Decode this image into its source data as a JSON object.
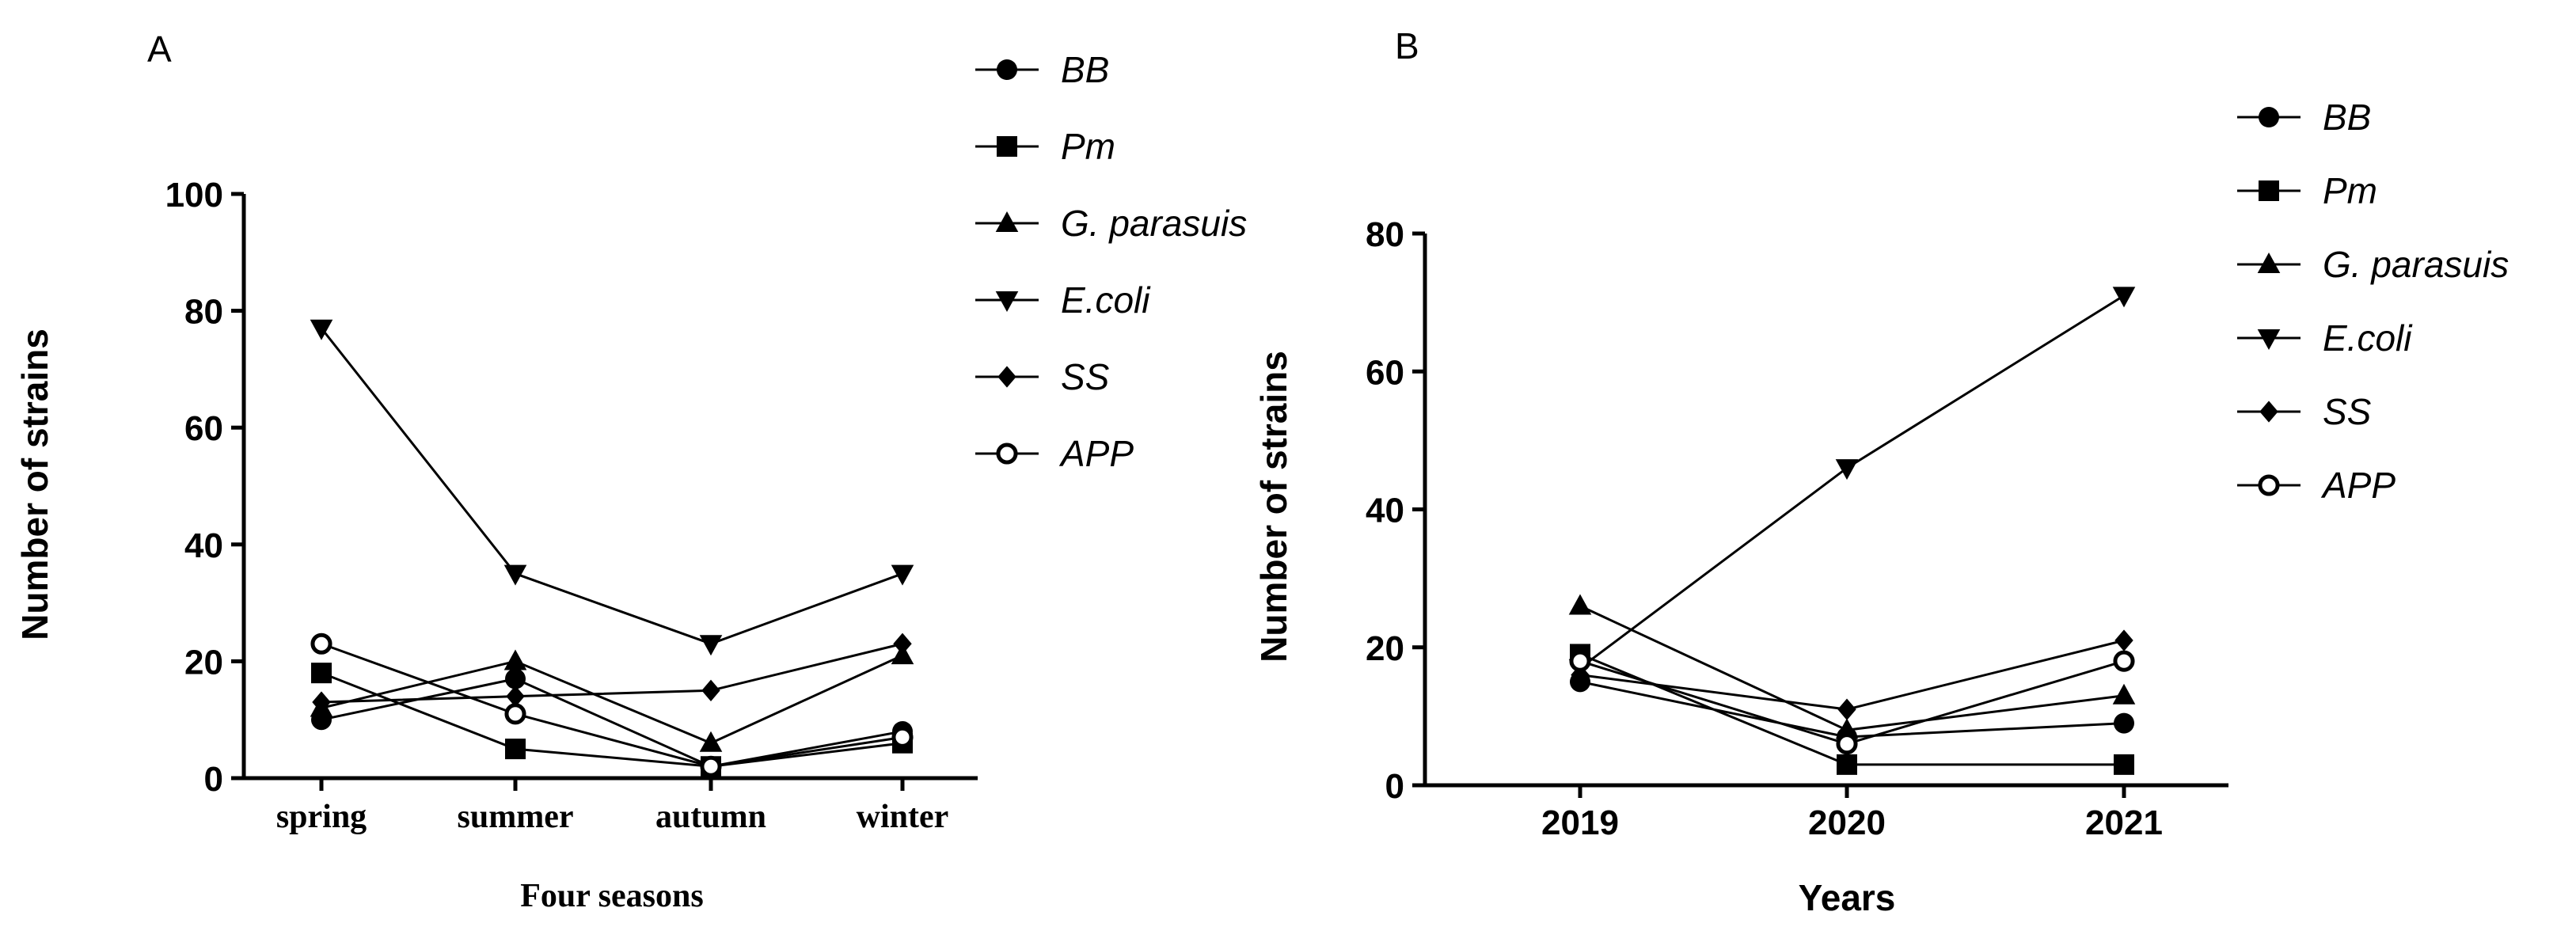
{
  "chart_data": [
    {
      "panel_label": "A",
      "type": "line",
      "xlabel": "Four seasons",
      "ylabel": "Number of strains",
      "categories": [
        "spring",
        "summer",
        "autumn",
        "winter"
      ],
      "yticks": [
        "0",
        "20",
        "40",
        "60",
        "80",
        "100"
      ],
      "ylim": [
        0,
        100
      ],
      "legend": "top-right",
      "grid": false,
      "series": [
        {
          "name": "BB",
          "marker": "circle",
          "values": [
            10,
            17,
            2,
            8
          ]
        },
        {
          "name": "Pm",
          "marker": "square",
          "values": [
            18,
            5,
            2,
            6
          ]
        },
        {
          "name": "G. parasuis",
          "marker": "triangle-up",
          "values": [
            12,
            20,
            6,
            21
          ]
        },
        {
          "name": "E.coli",
          "marker": "triangle-down",
          "values": [
            77,
            35,
            23,
            35
          ]
        },
        {
          "name": "SS",
          "marker": "diamond",
          "values": [
            13,
            14,
            15,
            23
          ]
        },
        {
          "name": "APP",
          "marker": "open-circle",
          "values": [
            23,
            11,
            2,
            7
          ]
        }
      ]
    },
    {
      "panel_label": "B",
      "type": "line",
      "xlabel": "Years",
      "ylabel": "Number of strains",
      "categories": [
        "2019",
        "2020",
        "2021"
      ],
      "yticks": [
        "0",
        "20",
        "40",
        "60",
        "80"
      ],
      "ylim": [
        0,
        80
      ],
      "legend": "top-right",
      "grid": false,
      "series": [
        {
          "name": "BB",
          "marker": "circle",
          "values": [
            15,
            7,
            9
          ]
        },
        {
          "name": "Pm",
          "marker": "square",
          "values": [
            19,
            3,
            3
          ]
        },
        {
          "name": "G. parasuis",
          "marker": "triangle-up",
          "values": [
            26,
            8,
            13
          ]
        },
        {
          "name": "E.coli",
          "marker": "triangle-down",
          "values": [
            17,
            46,
            71
          ]
        },
        {
          "name": "SS",
          "marker": "diamond",
          "values": [
            16,
            11,
            21
          ]
        },
        {
          "name": "APP",
          "marker": "open-circle",
          "values": [
            18,
            6,
            18
          ]
        }
      ]
    }
  ]
}
